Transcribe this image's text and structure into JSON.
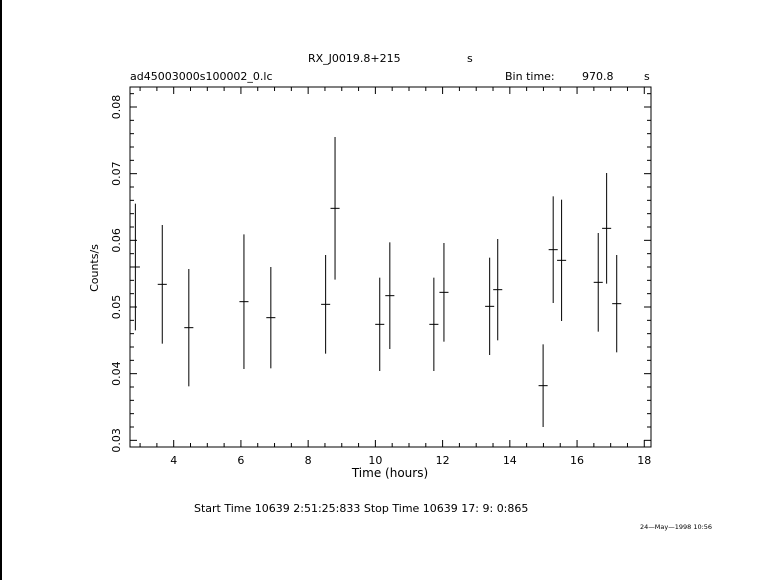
{
  "chart_data": {
    "type": "scatter",
    "title": "RX_J0019.8+215",
    "title_suffix": "s",
    "subtitle_left": "ad45003000s100002_0.lc",
    "bin_label": "Bin time:",
    "bin_value": "970.8",
    "bin_unit": "s",
    "xlabel": "Time (hours)",
    "ylabel": "Counts/s",
    "xlim": [
      2.7,
      18.2
    ],
    "ylim": [
      0.029,
      0.083
    ],
    "x_ticks": [
      "4",
      "6",
      "8",
      "10",
      "12",
      "14",
      "16",
      "18"
    ],
    "y_ticks": [
      "0.03",
      "0.04",
      "0.05",
      "0.06",
      "0.07",
      "0.08"
    ],
    "points": [
      {
        "x": 2.86,
        "y": 0.056,
        "xerr": 0.135,
        "yerr": 0.0095
      },
      {
        "x": 3.66,
        "y": 0.0534,
        "xerr": 0.135,
        "yerr": 0.0089
      },
      {
        "x": 4.45,
        "y": 0.0469,
        "xerr": 0.135,
        "yerr": 0.0088
      },
      {
        "x": 6.09,
        "y": 0.0508,
        "xerr": 0.135,
        "yerr": 0.0101
      },
      {
        "x": 6.89,
        "y": 0.0484,
        "xerr": 0.135,
        "yerr": 0.0076
      },
      {
        "x": 8.52,
        "y": 0.0504,
        "xerr": 0.135,
        "yerr": 0.0074
      },
      {
        "x": 8.8,
        "y": 0.0648,
        "xerr": 0.135,
        "yerr": 0.0107
      },
      {
        "x": 10.13,
        "y": 0.0474,
        "xerr": 0.135,
        "yerr": 0.007
      },
      {
        "x": 10.43,
        "y": 0.0517,
        "xerr": 0.135,
        "yerr": 0.008
      },
      {
        "x": 11.74,
        "y": 0.0474,
        "xerr": 0.135,
        "yerr": 0.007
      },
      {
        "x": 12.04,
        "y": 0.0522,
        "xerr": 0.135,
        "yerr": 0.0074
      },
      {
        "x": 13.4,
        "y": 0.0501,
        "xerr": 0.135,
        "yerr": 0.0073
      },
      {
        "x": 13.64,
        "y": 0.0526,
        "xerr": 0.135,
        "yerr": 0.0076
      },
      {
        "x": 14.99,
        "y": 0.0382,
        "xerr": 0.135,
        "yerr": 0.0062
      },
      {
        "x": 15.29,
        "y": 0.0586,
        "xerr": 0.135,
        "yerr": 0.008
      },
      {
        "x": 15.54,
        "y": 0.057,
        "xerr": 0.135,
        "yerr": 0.0091
      },
      {
        "x": 16.63,
        "y": 0.0537,
        "xerr": 0.135,
        "yerr": 0.0074
      },
      {
        "x": 16.88,
        "y": 0.0618,
        "xerr": 0.135,
        "yerr": 0.0083
      },
      {
        "x": 17.18,
        "y": 0.0505,
        "xerr": 0.135,
        "yerr": 0.0073
      }
    ],
    "grid": false,
    "legend": "none"
  },
  "footer": {
    "times": "Start Time 10639  2:51:25:833    Stop Time 10639 17: 9: 0:865",
    "date": "24—May—1998 10:56"
  }
}
